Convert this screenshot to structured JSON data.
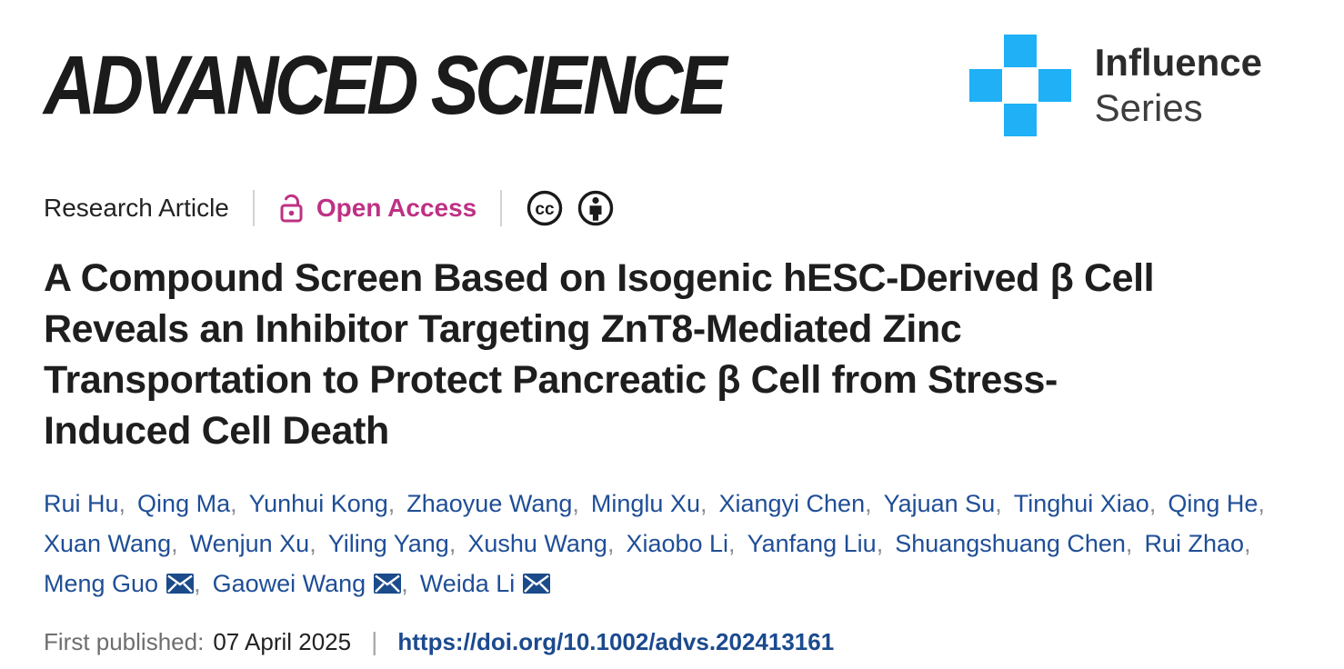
{
  "header": {
    "journal_logo": "ADVANCED SCIENCE",
    "series": {
      "line1": "Influence",
      "line2": "Series"
    }
  },
  "meta": {
    "article_type": "Research Article",
    "access_label": "Open Access"
  },
  "title_lines": [
    "A Compound Screen Based on Isogenic hESC-Derived β Cell",
    "Reveals an Inhibitor Targeting ZnT8-Mediated Zinc",
    "Transportation to Protect Pancreatic β Cell from Stress-",
    "Induced Cell Death"
  ],
  "authors": {
    "lines": [
      [
        {
          "name": "Rui Hu",
          "corresponding": false
        },
        {
          "name": "Qing Ma",
          "corresponding": false
        },
        {
          "name": "Yunhui Kong",
          "corresponding": false
        },
        {
          "name": "Zhaoyue Wang",
          "corresponding": false
        },
        {
          "name": "Minglu Xu",
          "corresponding": false
        },
        {
          "name": "Xiangyi Chen",
          "corresponding": false
        },
        {
          "name": "Yajuan Su",
          "corresponding": false
        },
        {
          "name": "Tinghui Xiao",
          "corresponding": false
        },
        {
          "name": "Qing He",
          "corresponding": false
        }
      ],
      [
        {
          "name": "Xuan Wang",
          "corresponding": false
        },
        {
          "name": "Wenjun Xu",
          "corresponding": false
        },
        {
          "name": "Yiling Yang",
          "corresponding": false
        },
        {
          "name": "Xushu Wang",
          "corresponding": false
        },
        {
          "name": "Xiaobo Li",
          "corresponding": false
        },
        {
          "name": "Yanfang Liu",
          "corresponding": false
        },
        {
          "name": "Shuangshuang Chen",
          "corresponding": false
        },
        {
          "name": "Rui Zhao",
          "corresponding": false
        }
      ],
      [
        {
          "name": "Meng Guo",
          "corresponding": true
        },
        {
          "name": "Gaowei Wang",
          "corresponding": true
        },
        {
          "name": "Weida Li",
          "corresponding": true
        }
      ]
    ]
  },
  "published": {
    "label": "First published:",
    "date": "07 April 2025",
    "doi": "https://doi.org/10.1002/advs.202413161"
  },
  "icons": {
    "cross": "influence-cross-icon",
    "lock": "open-lock-icon",
    "cc": "cc-icon",
    "by": "cc-by-person-icon",
    "mail": "envelope-icon"
  },
  "colors": {
    "accent_blue": "#1fb0f6",
    "open_access_magenta": "#be3184",
    "author_blue": "#1f4e96",
    "doi_blue": "#1b4a8e",
    "comma_gray": "#8b8b95",
    "label_gray": "#6e6e6e",
    "text_dark": "#1e1e1e"
  }
}
